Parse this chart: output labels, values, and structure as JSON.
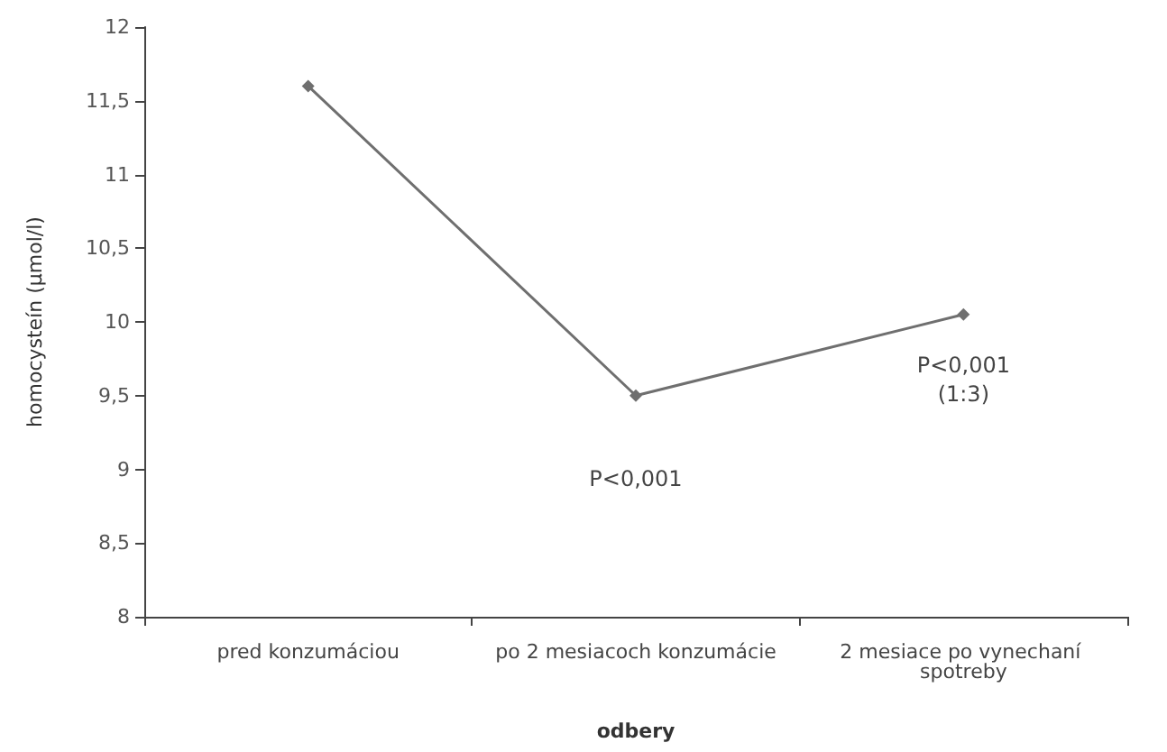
{
  "chart_data": {
    "type": "line",
    "xlabel": "odbery",
    "ylabel": "homocysteín (µmol/l)",
    "categories": [
      "pred konzumáciou",
      "po 2 mesiacoch konzumácie",
      "2 mesiace po vynechaní spotreby"
    ],
    "series": [
      {
        "color": "#6f6f6f",
        "values": [
          11.6,
          9.5,
          10.05
        ]
      }
    ],
    "ylim": [
      8,
      12
    ],
    "yticks": [
      8,
      {
        "value": 8.5,
        "label": "8,5"
      },
      9,
      {
        "value": 9.5,
        "label": "9,5"
      },
      10,
      {
        "value": 10.5,
        "label": "10,5"
      },
      11,
      {
        "value": 11.5,
        "label": "11,5"
      },
      12
    ],
    "grid": false,
    "marker": "diamond",
    "line_style": "solid",
    "annotations": [
      "P<0,001",
      "P<0,001\n(1:3)"
    ]
  }
}
